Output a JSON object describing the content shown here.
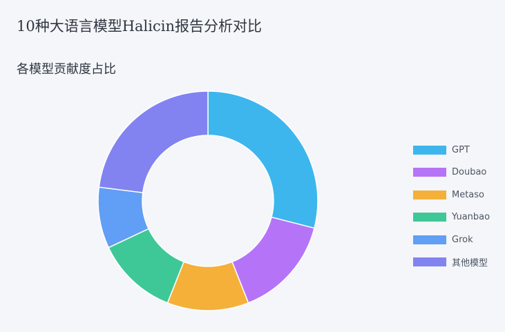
{
  "page": {
    "title": "10种大语言模型Halicin报告分析对比"
  },
  "chart_data": {
    "type": "pie",
    "variant": "donut",
    "title": "各模型贡献度占比",
    "legend_position": "right",
    "slices": [
      {
        "label": "GPT",
        "value": 29,
        "color": "#3db6ee"
      },
      {
        "label": "Doubao",
        "value": 15,
        "color": "#b574f8"
      },
      {
        "label": "Metaso",
        "value": 12,
        "color": "#f5b03a"
      },
      {
        "label": "Yuanbao",
        "value": 12,
        "color": "#3ec897"
      },
      {
        "label": "Grok",
        "value": 9,
        "color": "#619ef5"
      },
      {
        "label": "其他模型",
        "value": 23,
        "color": "#8283f1"
      }
    ]
  }
}
